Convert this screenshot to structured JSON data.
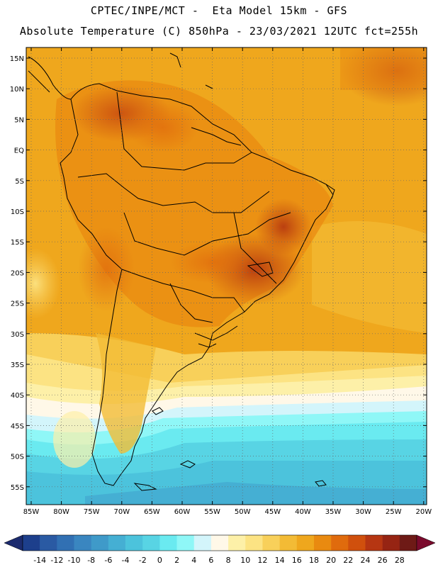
{
  "header": {
    "line1": "CPTEC/INPE/MCT -  Eta Model 15km - GFS",
    "line2": "Absolute Temperature (C) 850hPa - 23/03/2021 12UTC fct=255h"
  },
  "axes": {
    "lat_labels": [
      "15N",
      "10N",
      "5N",
      "EQ",
      "5S",
      "10S",
      "15S",
      "20S",
      "25S",
      "30S",
      "35S",
      "40S",
      "45S",
      "50S",
      "55S"
    ],
    "lon_labels": [
      "85W",
      "80W",
      "75W",
      "70W",
      "65W",
      "60W",
      "55W",
      "50W",
      "45W",
      "40W",
      "35W",
      "30W",
      "25W",
      "20W"
    ]
  },
  "colorbar": {
    "ticks": [
      "-14",
      "-12",
      "-10",
      "-8",
      "-6",
      "-4",
      "-2",
      "0",
      "2",
      "4",
      "6",
      "8",
      "10",
      "12",
      "14",
      "16",
      "18",
      "20",
      "22",
      "24",
      "26",
      "28"
    ],
    "colors": [
      "#1d3f8c",
      "#2a5aa3",
      "#3170b3",
      "#3a86c0",
      "#3f9ac9",
      "#45afd3",
      "#4cc3dc",
      "#58d4e4",
      "#6aeaf0",
      "#8ff7f7",
      "#d3f5fb",
      "#fff8e8",
      "#fdf0a8",
      "#fce383",
      "#f8d05a",
      "#f3bb35",
      "#efa71d",
      "#e98a10",
      "#e06b0d",
      "#d0500d",
      "#b63612",
      "#962413",
      "#6e1a16"
    ],
    "under_color": "#1c2b6e",
    "over_color": "#7a0a2c"
  }
}
